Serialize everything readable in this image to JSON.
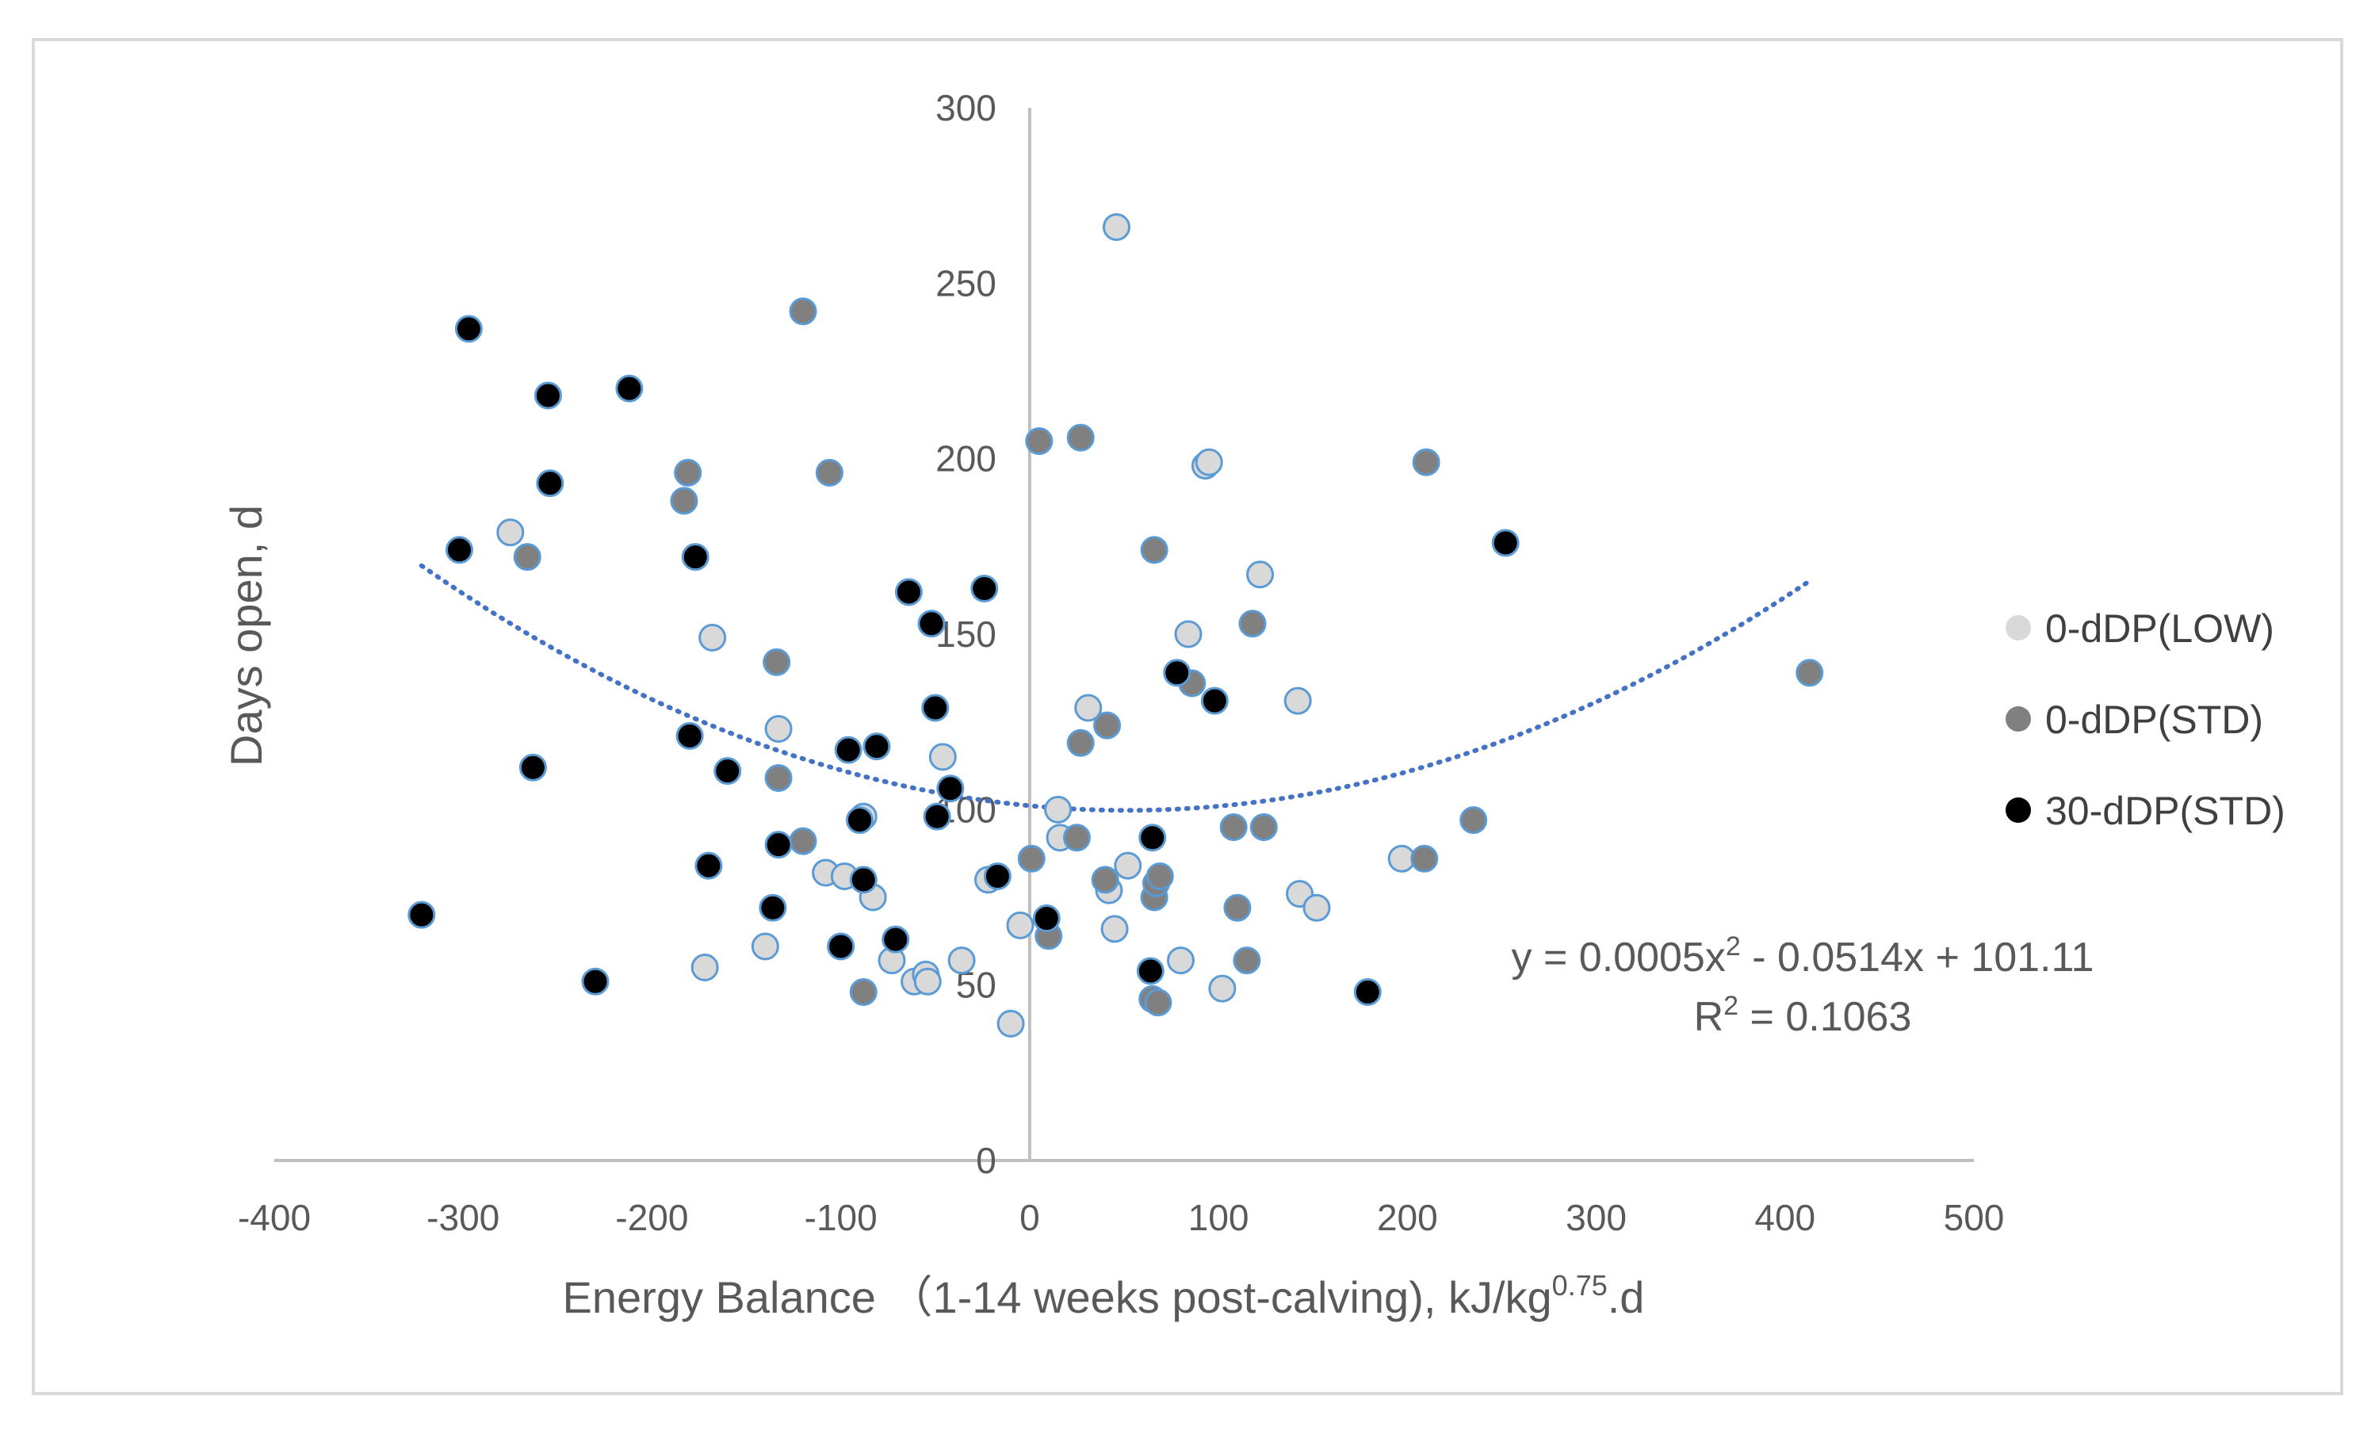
{
  "chart_data": {
    "type": "scatter",
    "title": "",
    "xlabel": "Energy Balance （1-14 weeks post-calving), kJ/kg",
    "xlabel_superscript": "0.75",
    "xlabel_suffix": ".d",
    "ylabel": "Days open, d",
    "xlim": [
      -400,
      500
    ],
    "ylim": [
      0,
      300
    ],
    "x_ticks": [
      -400,
      -300,
      -200,
      -100,
      0,
      100,
      200,
      300,
      400,
      500
    ],
    "y_ticks": [
      0,
      50,
      100,
      150,
      200,
      250,
      300
    ],
    "x_tick_labels": [
      "-400",
      "-300",
      "-200",
      "-100",
      "0",
      "100",
      "200",
      "300",
      "400",
      "500"
    ],
    "y_tick_labels": [
      "0",
      "50",
      "100",
      "150",
      "200",
      "250",
      "300"
    ],
    "grid": false,
    "legend_position": "right",
    "series": [
      {
        "name": "0-dDP(LOW)",
        "color": "#d9d9d9",
        "points": [
          [
            -275,
            179
          ],
          [
            -168,
            149
          ],
          [
            -172,
            55
          ],
          [
            -140,
            61
          ],
          [
            -133,
            123
          ],
          [
            -108,
            82
          ],
          [
            -98,
            81
          ],
          [
            -88,
            98
          ],
          [
            -83,
            75
          ],
          [
            -73,
            57
          ],
          [
            -61,
            51
          ],
          [
            -55,
            53
          ],
          [
            -54,
            51
          ],
          [
            -46,
            115
          ],
          [
            -36,
            57
          ],
          [
            -22,
            80
          ],
          [
            -10,
            39
          ],
          [
            -5,
            67
          ],
          [
            15,
            100
          ],
          [
            16,
            92
          ],
          [
            31,
            129
          ],
          [
            42,
            77
          ],
          [
            45,
            66
          ],
          [
            46,
            266
          ],
          [
            52,
            84
          ],
          [
            80,
            57
          ],
          [
            84,
            150
          ],
          [
            93,
            198
          ],
          [
            95,
            199
          ],
          [
            102,
            49
          ],
          [
            122,
            167
          ],
          [
            142,
            131
          ],
          [
            143,
            76
          ],
          [
            152,
            72
          ],
          [
            197,
            86
          ]
        ]
      },
      {
        "name": "0-dDP(STD)",
        "color": "#808080",
        "points": [
          [
            -266,
            172
          ],
          [
            -183,
            188
          ],
          [
            -181,
            196
          ],
          [
            -134,
            142
          ],
          [
            -133,
            109
          ],
          [
            -120,
            91
          ],
          [
            -120,
            242
          ],
          [
            -106,
            196
          ],
          [
            -88,
            48
          ],
          [
            1,
            86
          ],
          [
            5,
            205
          ],
          [
            10,
            64
          ],
          [
            25,
            92
          ],
          [
            27,
            119
          ],
          [
            27,
            206
          ],
          [
            40,
            80
          ],
          [
            41,
            124
          ],
          [
            65,
            46
          ],
          [
            66,
            174
          ],
          [
            66,
            75
          ],
          [
            67,
            79
          ],
          [
            68,
            45
          ],
          [
            69,
            81
          ],
          [
            86,
            136
          ],
          [
            108,
            95
          ],
          [
            110,
            72
          ],
          [
            115,
            57
          ],
          [
            118,
            153
          ],
          [
            124,
            95
          ],
          [
            209,
            86
          ],
          [
            210,
            199
          ],
          [
            235,
            97
          ],
          [
            413,
            139
          ]
        ]
      },
      {
        "name": "30-dDP(STD)",
        "color": "#000000",
        "points": [
          [
            -322,
            70
          ],
          [
            -302,
            174
          ],
          [
            -297,
            237
          ],
          [
            -263,
            112
          ],
          [
            -255,
            218
          ],
          [
            -254,
            193
          ],
          [
            -230,
            51
          ],
          [
            -212,
            220
          ],
          [
            -180,
            121
          ],
          [
            -177,
            172
          ],
          [
            -170,
            84
          ],
          [
            -160,
            111
          ],
          [
            -136,
            72
          ],
          [
            -133,
            90
          ],
          [
            -100,
            61
          ],
          [
            -96,
            117
          ],
          [
            -90,
            97
          ],
          [
            -88,
            80
          ],
          [
            -81,
            118
          ],
          [
            -71,
            63
          ],
          [
            -64,
            162
          ],
          [
            -52,
            153
          ],
          [
            -50,
            129
          ],
          [
            -49,
            98
          ],
          [
            -42,
            106
          ],
          [
            -24,
            163
          ],
          [
            -17,
            81
          ],
          [
            9,
            69
          ],
          [
            64,
            54
          ],
          [
            65,
            92
          ],
          [
            78,
            139
          ],
          [
            98,
            131
          ],
          [
            179,
            48
          ],
          [
            252,
            176
          ]
        ]
      }
    ],
    "trendline": {
      "type": "polynomial",
      "order": 2,
      "coefficients": [
        0.0005,
        -0.0514,
        101.11
      ],
      "x_range": [
        -322,
        413
      ],
      "color": "#4472c4",
      "style": "dotted"
    },
    "annotations": {
      "equation_lead": "y = 0.0005x",
      "equation_exp": "2",
      "equation_tail": " - 0.0514x + 101.11",
      "r2_lead": "R",
      "r2_exp": "2",
      "r2_tail": " = 0.1063"
    }
  }
}
